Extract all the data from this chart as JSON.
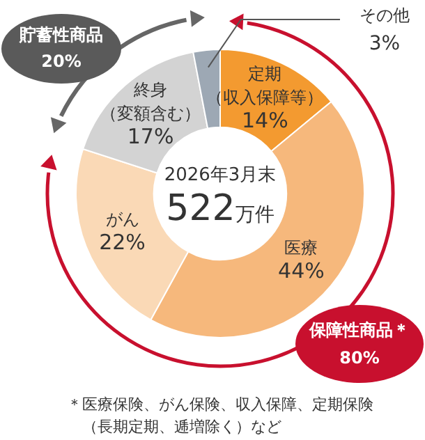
{
  "chart_data": {
    "type": "donut",
    "title": "2026年3月末",
    "categories": [
      "定期（収入保障等）",
      "医療",
      "がん",
      "終身（変額含む）",
      "その他"
    ],
    "values": [
      14,
      44,
      22,
      17,
      3
    ],
    "value_labels": [
      "14%",
      "44%",
      "22%",
      "17%",
      "3%"
    ],
    "colors": [
      "#f39a30",
      "#f6b87c",
      "#fad9b6",
      "#d3d3d3",
      "#9da8b4"
    ],
    "legend": false,
    "annotations": [
      "522万件",
      "貯蓄性商品 20%",
      "保障性商品＊ 80%",
      "＊医療保険、がん保険、収入保障、定期保険（長期定期、逓増除く）など"
    ]
  }
}
